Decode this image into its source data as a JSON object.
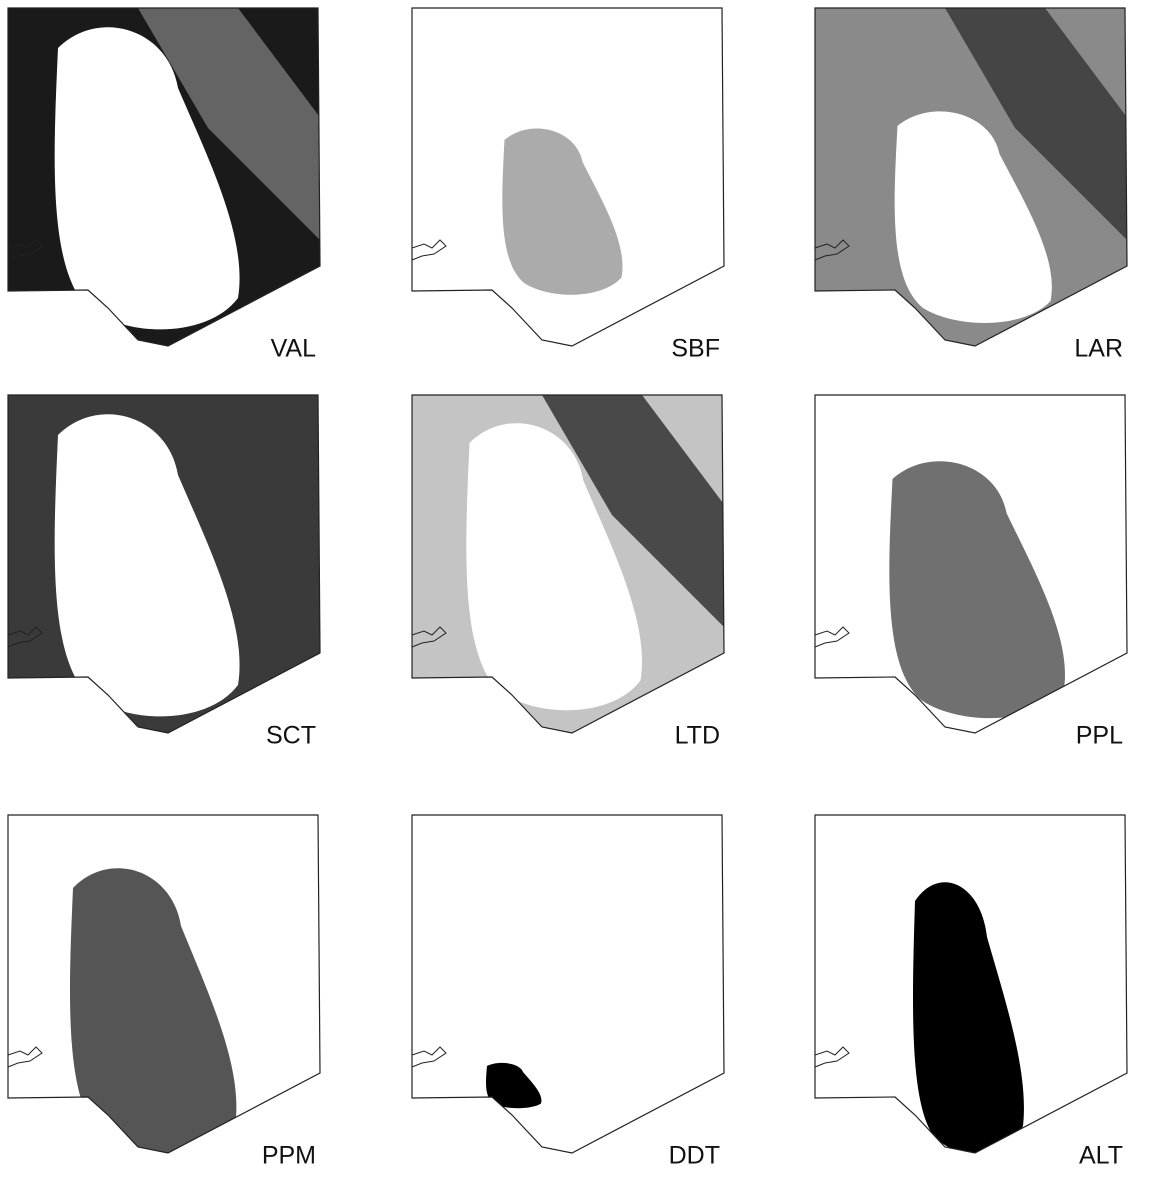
{
  "panels": [
    {
      "label": "VAL"
    },
    {
      "label": "SBF"
    },
    {
      "label": "LAR"
    },
    {
      "label": "SCT"
    },
    {
      "label": "LTD"
    },
    {
      "label": "PPL"
    },
    {
      "label": "PPM"
    },
    {
      "label": "DDT"
    },
    {
      "label": "ALT"
    }
  ]
}
